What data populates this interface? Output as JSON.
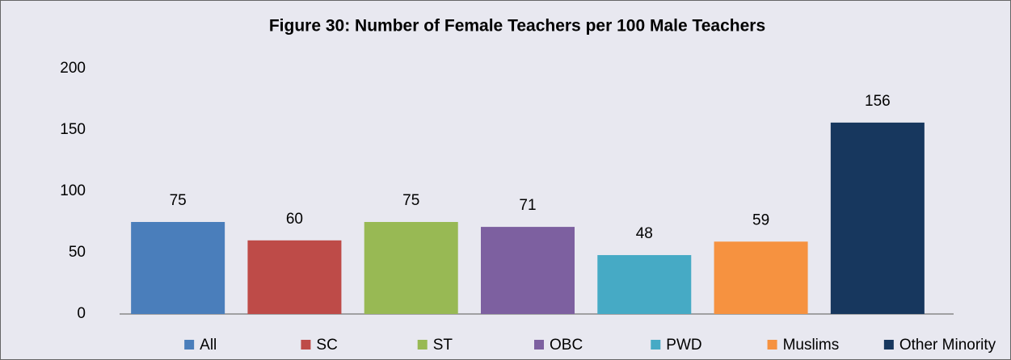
{
  "chart_data": {
    "type": "bar",
    "title": "Figure 30: Number of Female Teachers per 100 Male Teachers",
    "categories": [
      "All",
      "SC",
      "ST",
      "OBC",
      "PWD",
      "Muslims",
      "Other Minority"
    ],
    "values": [
      75,
      60,
      75,
      71,
      48,
      59,
      156
    ],
    "colors": [
      "#4a7ebb",
      "#be4b48",
      "#98b954",
      "#7d60a0",
      "#46aac5",
      "#f69240",
      "#17375e"
    ],
    "ylim": [
      0,
      200
    ],
    "yticks": [
      0,
      50,
      100,
      150,
      200
    ],
    "grid": false,
    "legend": "bottom"
  }
}
